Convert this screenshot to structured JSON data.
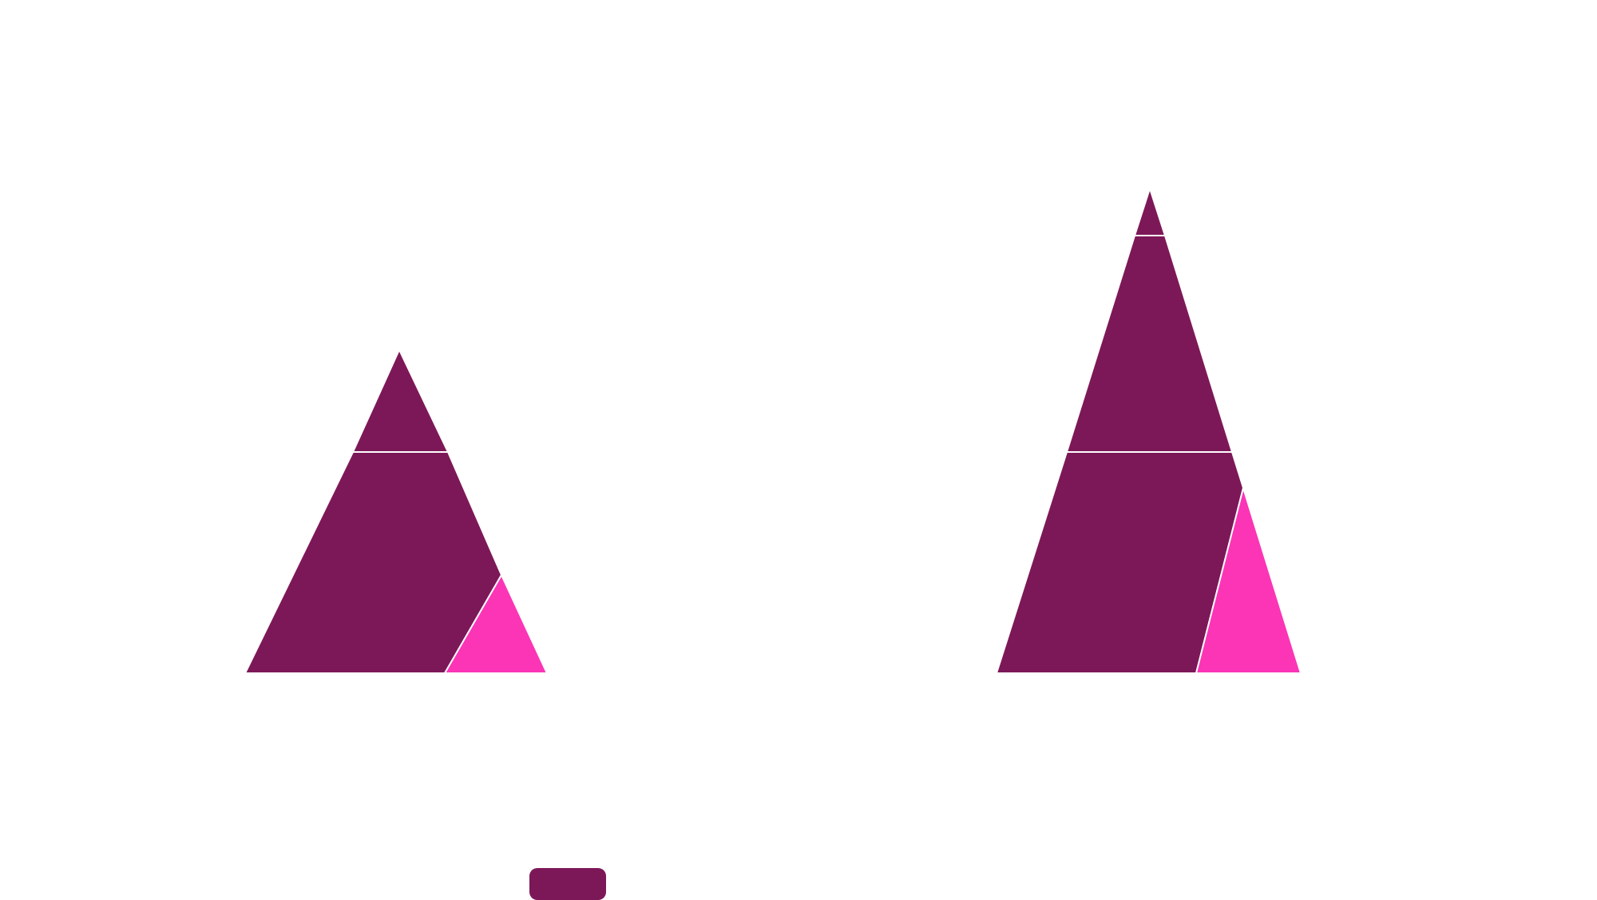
{
  "colors": {
    "background": "#ffffff",
    "piece_dark": "#7d1858",
    "piece_bright": "#fb35b6",
    "seam": "#ffffff",
    "button": "#7d1858"
  },
  "puzzles": [
    {
      "name": "left-triangle",
      "pieces": [
        {
          "name": "top-piece",
          "color_key": "piece_dark"
        },
        {
          "name": "middle-piece",
          "color_key": "piece_dark"
        },
        {
          "name": "corner-piece",
          "color_key": "piece_bright"
        }
      ]
    },
    {
      "name": "right-triangle",
      "pieces": [
        {
          "name": "tip-piece",
          "color_key": "piece_dark"
        },
        {
          "name": "upper-piece",
          "color_key": "piece_dark"
        },
        {
          "name": "lower-piece",
          "color_key": "piece_dark"
        },
        {
          "name": "corner-piece",
          "color_key": "piece_bright"
        }
      ]
    }
  ],
  "button": {
    "label": "",
    "icon": "none"
  }
}
